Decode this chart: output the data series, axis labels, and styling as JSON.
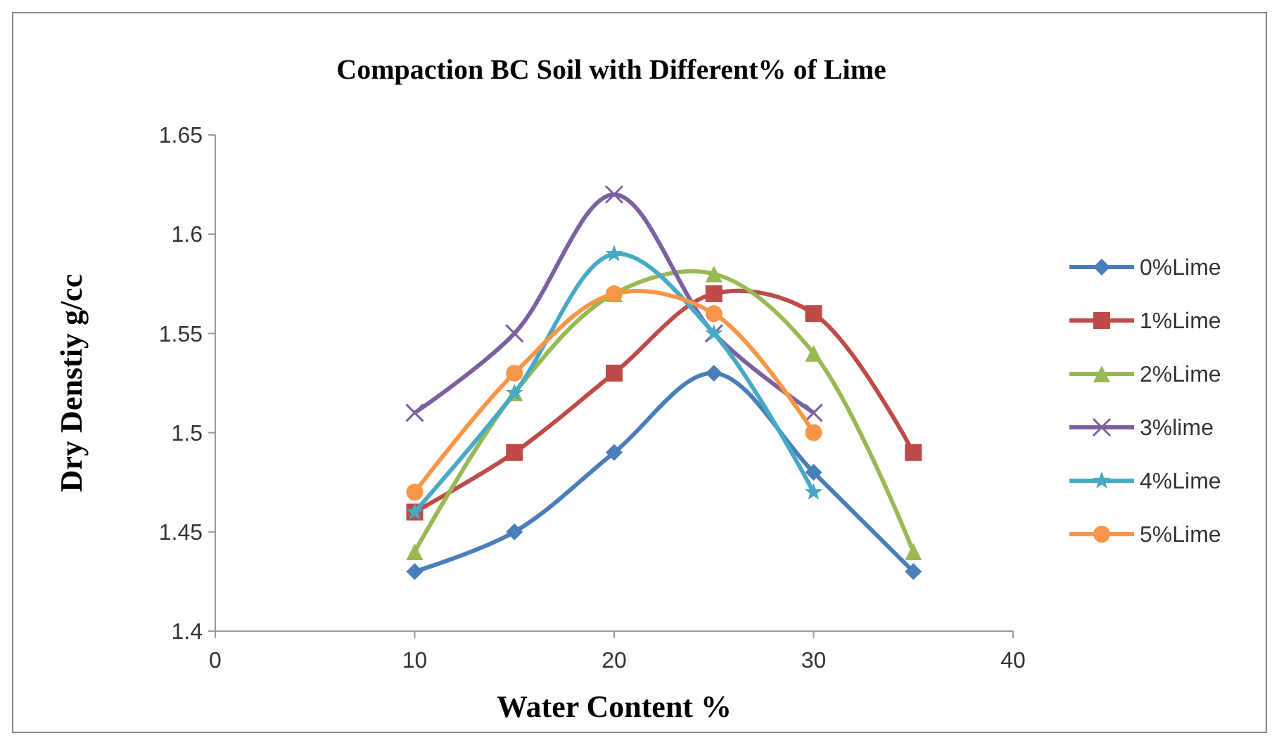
{
  "chart_data": {
    "type": "line",
    "title": "Compaction BC Soil with Different% of Lime",
    "xlabel": "Water Content %",
    "ylabel": "Dry Denstiy g/cc",
    "xlim": [
      0,
      40
    ],
    "xticks": [
      0,
      10,
      20,
      30,
      40
    ],
    "ylim": [
      1.4,
      1.65
    ],
    "yticks": [
      1.4,
      1.45,
      1.5,
      1.55,
      1.6,
      1.65
    ],
    "grid": false,
    "legend": "right",
    "line_style": "solid",
    "series": [
      {
        "name": "0%Lime",
        "color": "#4a7ebb",
        "marker": "diamond",
        "x": [
          10,
          15,
          20,
          25,
          30,
          35
        ],
        "values": [
          1.43,
          1.45,
          1.49,
          1.53,
          1.48,
          1.43
        ]
      },
      {
        "name": "1%Lime",
        "color": "#be4b48",
        "marker": "square",
        "x": [
          10,
          15,
          20,
          25,
          30,
          35
        ],
        "values": [
          1.46,
          1.49,
          1.53,
          1.57,
          1.56,
          1.49
        ]
      },
      {
        "name": "2%Lime",
        "color": "#98b954",
        "marker": "triangle",
        "x": [
          10,
          15,
          20,
          25,
          30,
          35
        ],
        "values": [
          1.44,
          1.52,
          1.57,
          1.58,
          1.54,
          1.44
        ]
      },
      {
        "name": "3%lime",
        "color": "#7d60a0",
        "marker": "cross",
        "x": [
          10,
          15,
          20,
          25,
          30
        ],
        "values": [
          1.51,
          1.55,
          1.62,
          1.55,
          1.51
        ]
      },
      {
        "name": "4%Lime",
        "color": "#46aac5",
        "marker": "star",
        "x": [
          10,
          15,
          20,
          25,
          30
        ],
        "values": [
          1.46,
          1.52,
          1.59,
          1.55,
          1.47
        ]
      },
      {
        "name": "5%Lime",
        "color": "#f79646",
        "marker": "circle",
        "x": [
          10,
          15,
          20,
          25,
          30
        ],
        "values": [
          1.47,
          1.53,
          1.57,
          1.56,
          1.5
        ]
      }
    ]
  }
}
